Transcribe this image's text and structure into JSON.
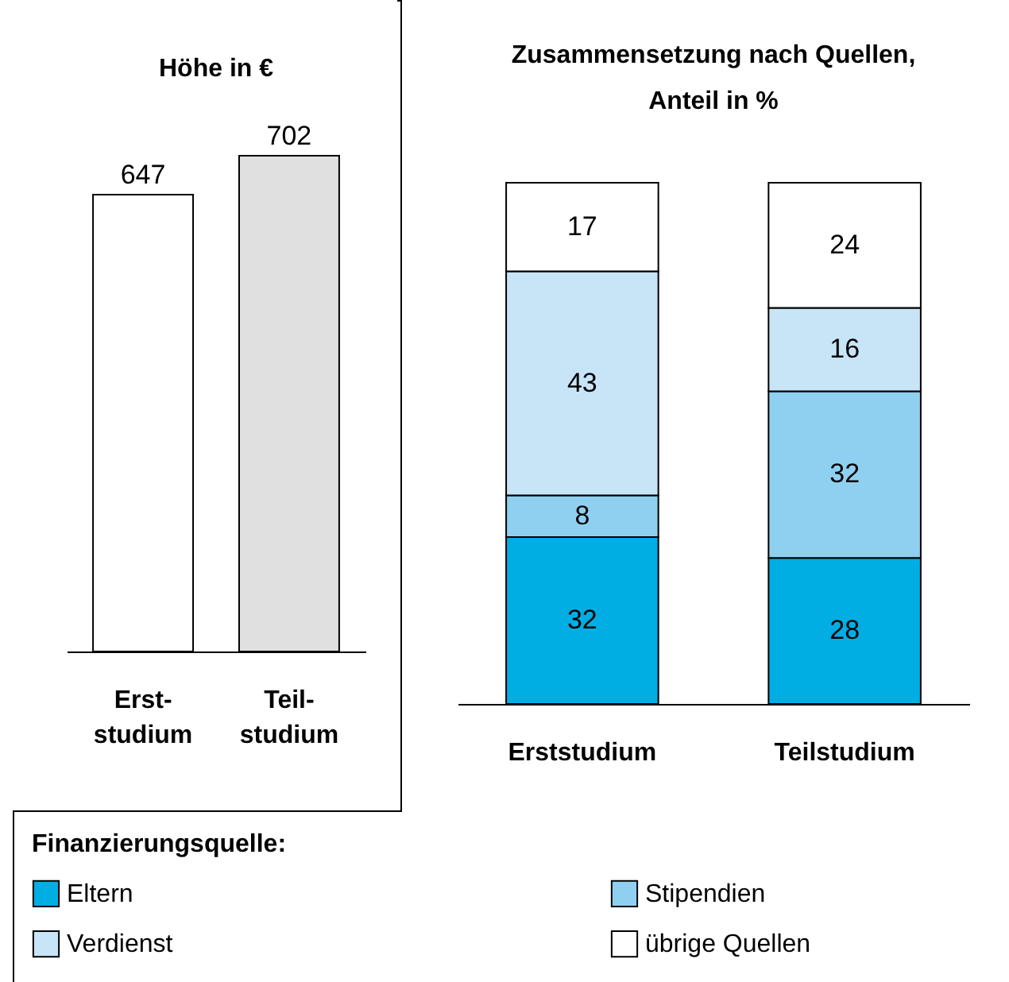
{
  "chart_data": [
    {
      "type": "bar",
      "title": "Höhe in €",
      "categories": [
        "Erst- studium",
        "Teil- studium"
      ],
      "values": [
        647,
        702
      ],
      "colors": [
        "#ffffff",
        "#e0e0e0"
      ],
      "data_labels": true
    },
    {
      "type": "bar",
      "title": "Zusammensetzung nach Quellen, Anteil in %",
      "categories": [
        "Erststudium",
        "Teilstudium"
      ],
      "stacked": true,
      "data_labels": true,
      "legend": "bottom",
      "legend_title": "Finanzierungsquelle:",
      "series": [
        {
          "name": "Eltern",
          "color": "#00aee3",
          "values": [
            32,
            28
          ]
        },
        {
          "name": "Stipendien",
          "color": "#8fd0f0",
          "values": [
            8,
            32
          ]
        },
        {
          "name": "Verdienst",
          "color": "#c7e5f7",
          "values": [
            43,
            16
          ]
        },
        {
          "name": "übrige Quellen",
          "color": "#ffffff",
          "values": [
            17,
            24
          ]
        }
      ]
    }
  ]
}
